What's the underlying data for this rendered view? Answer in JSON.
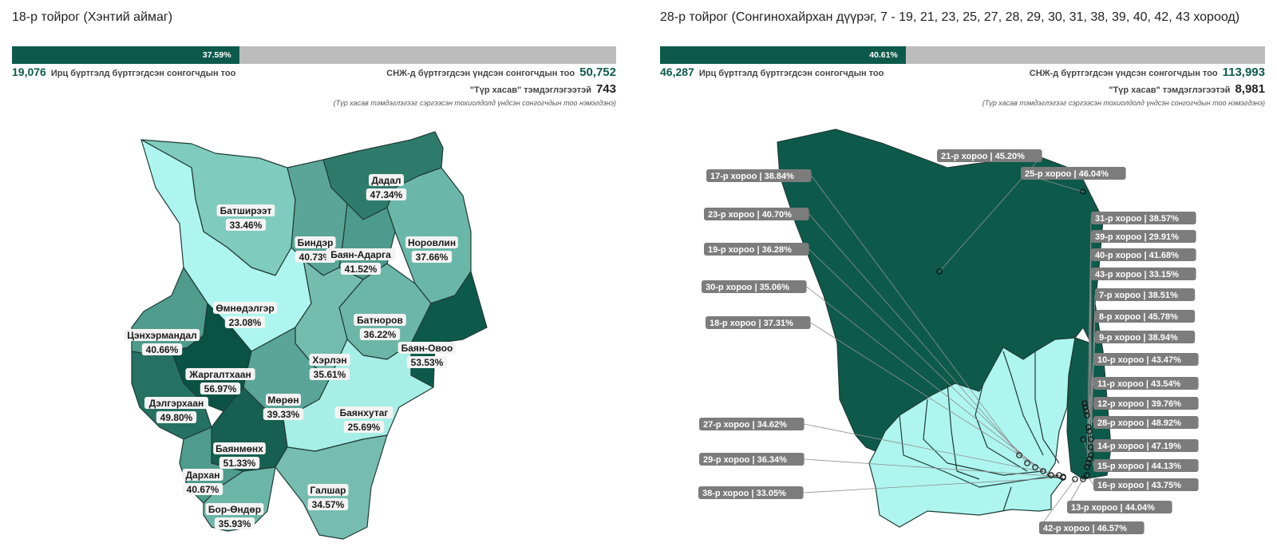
{
  "left": {
    "title": "18-р тойрог (Хэнтий аймаг)",
    "turnout_label": "37.59%",
    "turnout_fraction": 0.3759,
    "voted_count": "19,076",
    "voted_label": "Ирц бүртгэлд бүртгэгдсэн сонгогчдын тоо",
    "registered_label": "СНЖ-д бүртгэгдсэн үндсэн сонгогчдын тоо",
    "registered_count": "50,752",
    "blank_label": "\"Түр хасав\" тэмдэглэгээтэй",
    "blank_count": "743",
    "note": "(Түр хасав тэмдэглэгээг сэргээсэн тохиолдолд үндсэн сонгогчдын тоо нэмэгдэнэ)",
    "regions": [
      {
        "name": "Батширээт",
        "pct": "33.46%",
        "color": "#7fcbbe"
      },
      {
        "name": "Дадал",
        "pct": "47.34%",
        "color": "#2e7b6b"
      },
      {
        "name": "Биндэр",
        "pct": "40.73%",
        "color": "#5aa597"
      },
      {
        "name": "Баян-Адарга",
        "pct": "41.52%",
        "color": "#4d9b8c"
      },
      {
        "name": "Норовлин",
        "pct": "37.66%",
        "color": "#6ab7a9"
      },
      {
        "name": "Өмнөдэлгэр",
        "pct": "23.08%",
        "color": "#aef5ef"
      },
      {
        "name": "Цэнхэрмандал",
        "pct": "40.66%",
        "color": "#4f9c8d"
      },
      {
        "name": "Батноров",
        "pct": "36.22%",
        "color": "#6cb6a8"
      },
      {
        "name": "Баян-Овоо",
        "pct": "53.53%",
        "color": "#0d5a4b"
      },
      {
        "name": "Хэрлэн",
        "pct": "35.61%",
        "color": "#74bcae"
      },
      {
        "name": "Жаргалтхаан",
        "pct": "56.97%",
        "color": "#0a5244"
      },
      {
        "name": "Мөрөн",
        "pct": "39.33%",
        "color": "#5aa597"
      },
      {
        "name": "Дэлгэрхаан",
        "pct": "49.80%",
        "color": "#257163"
      },
      {
        "name": "Баянхутаг",
        "pct": "25.69%",
        "color": "#a7efe6"
      },
      {
        "name": "Баянмөнх",
        "pct": "51.33%",
        "color": "#175f51"
      },
      {
        "name": "Дархан",
        "pct": "40.67%",
        "color": "#4f9c8d"
      },
      {
        "name": "Галшар",
        "pct": "34.57%",
        "color": "#76bdb0"
      },
      {
        "name": "Бор-Өндөр",
        "pct": "35.93%",
        "color": "#6cb6a8"
      }
    ]
  },
  "right": {
    "title": "28-р тойрог (Сонгинохайрхан дүүрэг, 7 - 19, 21, 23, 25, 27, 28, 29, 30, 31, 38, 39, 40, 42, 43 хороод)",
    "turnout_label": "40.61%",
    "turnout_fraction": 0.4061,
    "voted_count": "46,287",
    "voted_label": "Ирц бүртгэлд бүртгэгдсэн сонгогчдын тоо",
    "registered_label": "СНЖ-д бүртгэгдсэн үндсэн сонгогчдын тоо",
    "registered_count": "113,993",
    "blank_label": "\"Түр хасав\" тэмдэглэгээтэй",
    "blank_count": "8,981",
    "note": "(Түр хасав тэмдэглэгээг сэргээсэн тохиолдолд үндсэн сонгогчдын тоо нэмэгдэнэ)",
    "khoroo_labels": [
      "21-р хороо | 45.20%",
      "25-р хороо | 46.04%",
      "17-р хороо | 38.84%",
      "23-р хороо | 40.70%",
      "19-р хороо | 36.28%",
      "30-р хороо | 35.06%",
      "18-р хороо | 37.31%",
      "27-р хороо | 34.62%",
      "29-р хороо | 36.34%",
      "38-р хороо | 33.05%",
      "31-р хороо | 38.57%",
      "39-р хороо | 29.91%",
      "40-р хороо | 41.68%",
      "43-р хороо | 33.15%",
      "7-р хороо | 38.51%",
      "8-р хороо | 45.78%",
      "9-р хороо | 38.94%",
      "10-р хороо | 43.47%",
      "11-р хороо | 43.54%",
      "12-р хороо | 39.76%",
      "28-р хороо | 48.92%",
      "14-р хороо | 47.19%",
      "15-р хороо | 44.13%",
      "16-р хороо | 43.75%",
      "13-р хороо | 44.04%",
      "42-р хороо | 46.57%"
    ],
    "colors": {
      "high": "#0d5a4b",
      "low": "#aef5ef"
    }
  }
}
